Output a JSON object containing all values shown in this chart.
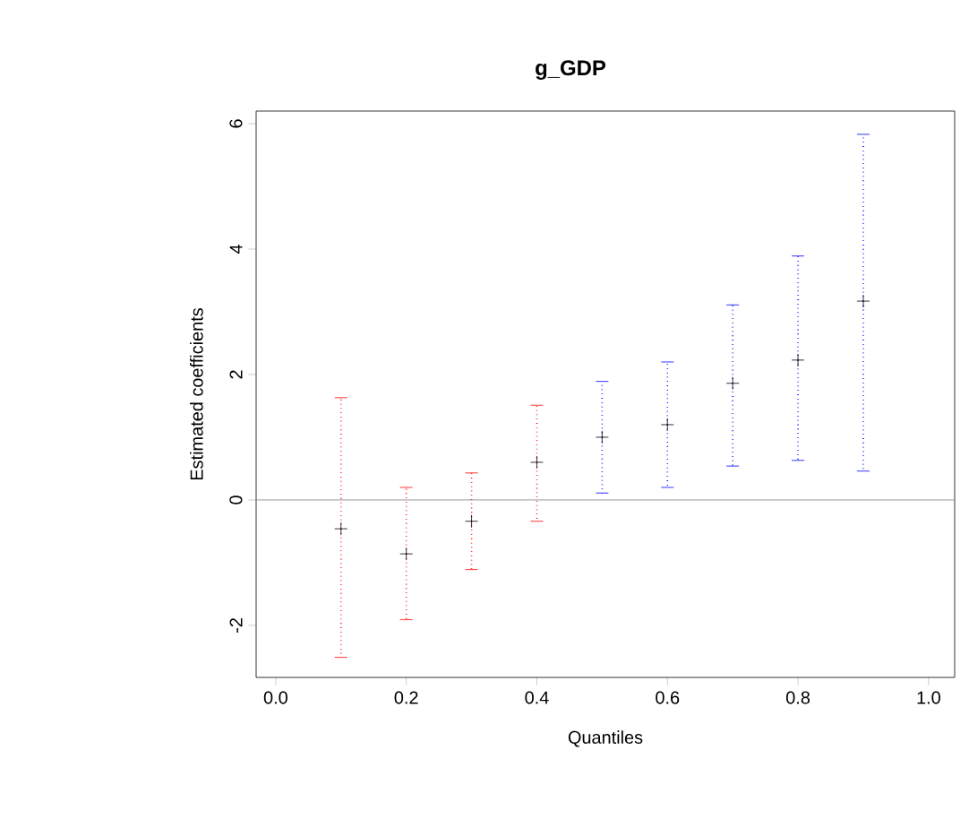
{
  "chart_data": {
    "type": "scatter",
    "title": "g_GDP",
    "xlabel": "Quantiles",
    "ylabel": "Estimated coefficients",
    "xlim": [
      -0.03,
      1.04
    ],
    "ylim": [
      -2.83,
      6.2
    ],
    "xticks": [
      {
        "value": 0,
        "label": "0.0"
      },
      {
        "value": 0.2,
        "label": "0.2"
      },
      {
        "value": 0.4,
        "label": "0.4"
      },
      {
        "value": 0.6,
        "label": "0.6"
      },
      {
        "value": 0.8,
        "label": "0.8"
      },
      {
        "value": 1,
        "label": "1.0"
      }
    ],
    "yticks": [
      -2,
      0,
      2,
      4,
      6
    ],
    "marker": "cross",
    "line_style": "dotted",
    "grid": false,
    "ref_lines": [
      {
        "axis": "y",
        "value": 0,
        "color": "#808080",
        "line_style": "solid"
      }
    ],
    "series": [
      {
        "color": "#ff0000",
        "colors": [
          "#000000",
          "#000000",
          "#000000",
          "#000000"
        ],
        "x": [
          0.1,
          0.2,
          0.3,
          0.4
        ],
        "values": [
          -0.46,
          -0.86,
          -0.34,
          0.6
        ],
        "errors": [
          [
            -2.51,
            1.63
          ],
          [
            -1.91,
            0.2
          ],
          [
            -1.11,
            0.43
          ],
          [
            -0.34,
            1.51
          ]
        ]
      },
      {
        "color": "#0000ff",
        "colors": [
          "#000000",
          "#000000",
          "#000000",
          "#000000",
          "#000000"
        ],
        "x": [
          0.5,
          0.6,
          0.7,
          0.8,
          0.9
        ],
        "values": [
          1.0,
          1.2,
          1.86,
          2.23,
          3.17
        ],
        "errors": [
          [
            0.11,
            1.89
          ],
          [
            0.2,
            2.2
          ],
          [
            0.54,
            3.11
          ],
          [
            0.63,
            3.89
          ],
          [
            0.46,
            5.83
          ]
        ]
      }
    ]
  }
}
